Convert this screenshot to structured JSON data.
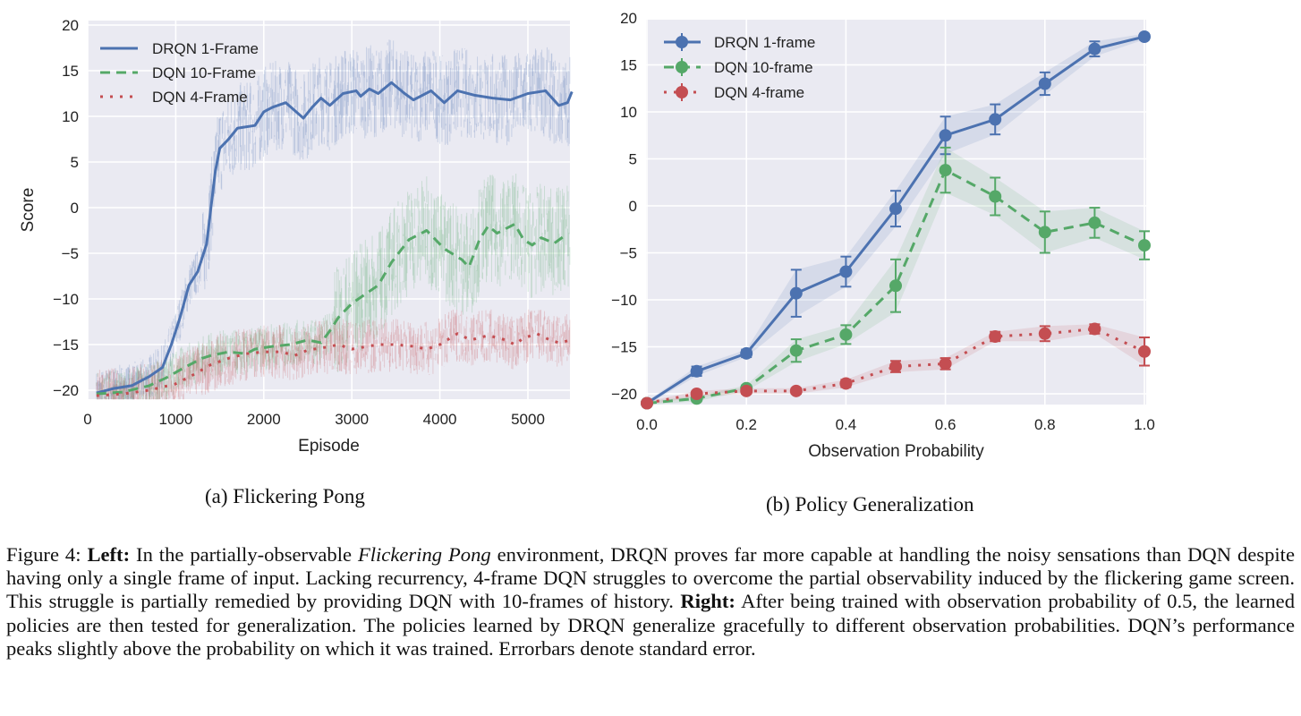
{
  "chart_data": [
    {
      "type": "line",
      "subcaption": "(a) Flickering Pong",
      "xlabel": "Episode",
      "ylabel": "Score",
      "xlim": [
        0,
        5500
      ],
      "ylim": [
        -21,
        20.5
      ],
      "xticks": [
        "0",
        "1000",
        "2000",
        "3000",
        "4000",
        "5000"
      ],
      "yticks": [
        "−20",
        "−15",
        "−10",
        "−5",
        "0",
        "5",
        "10",
        "15",
        "20"
      ],
      "grid": true,
      "legend_position": "top-left",
      "background": "#eaeaf2",
      "series": [
        {
          "name": "DRQN 1-Frame",
          "color": "#4c72b0",
          "style": "solid",
          "x": [
            100,
            300,
            500,
            700,
            850,
            950,
            1050,
            1150,
            1250,
            1350,
            1400,
            1450,
            1500,
            1600,
            1700,
            1900,
            2000,
            2100,
            2250,
            2450,
            2550,
            2650,
            2750,
            2900,
            3050,
            3100,
            3200,
            3300,
            3450,
            3600,
            3700,
            3900,
            4050,
            4200,
            4400,
            4600,
            4800,
            5000,
            5200,
            5350,
            5450,
            5500
          ],
          "y": [
            -20.3,
            -19.8,
            -19.5,
            -18.5,
            -17.5,
            -15,
            -12,
            -8.5,
            -7,
            -4,
            0,
            4,
            6.5,
            7.5,
            8.7,
            9,
            10.5,
            11,
            11.5,
            9.8,
            11,
            12,
            11.2,
            12.5,
            12.8,
            12.2,
            13,
            12.5,
            13.7,
            12.5,
            11.8,
            12.8,
            11.5,
            12.8,
            12.3,
            12,
            11.8,
            12.5,
            12.8,
            11.2,
            11.5,
            12.7
          ]
        },
        {
          "name": "DQN 10-Frame",
          "color": "#55a868",
          "style": "dashed",
          "x": [
            100,
            400,
            700,
            900,
            1100,
            1300,
            1400,
            1600,
            1800,
            1900,
            2100,
            2300,
            2500,
            2650,
            2750,
            2850,
            3000,
            3150,
            3300,
            3450,
            3650,
            3850,
            4050,
            4250,
            4330,
            4450,
            4550,
            4650,
            4750,
            4850,
            4950,
            5050,
            5150,
            5300,
            5400
          ],
          "y": [
            -20.4,
            -20.2,
            -19.5,
            -18.6,
            -17.5,
            -16.5,
            -16.2,
            -15.8,
            -16,
            -15.5,
            -15.2,
            -15,
            -14.5,
            -14.8,
            -13.5,
            -12,
            -10.5,
            -9.5,
            -8.5,
            -6,
            -3.5,
            -2.5,
            -4.5,
            -5.7,
            -6.5,
            -3.5,
            -2,
            -2.8,
            -2.3,
            -1.8,
            -3.5,
            -4.1,
            -3.3,
            -3.9,
            -3.2
          ]
        },
        {
          "name": "DQN 4-Frame",
          "color": "#c44e52",
          "style": "dotted",
          "x": [
            100,
            400,
            700,
            1000,
            1200,
            1400,
            1600,
            1800,
            2000,
            2200,
            2350,
            2500,
            2700,
            2850,
            3000,
            3300,
            3500,
            3700,
            3850,
            4000,
            4200,
            4350,
            4550,
            4750,
            4850,
            4950,
            5100,
            5250,
            5350,
            5450
          ],
          "y": [
            -20.6,
            -20.4,
            -20,
            -19.3,
            -18.3,
            -17.2,
            -16.5,
            -16,
            -15.8,
            -15.8,
            -16.2,
            -15.6,
            -15.3,
            -15,
            -15.5,
            -15,
            -15,
            -15.2,
            -15.5,
            -15,
            -13.8,
            -14.5,
            -14,
            -14.5,
            -15,
            -14.3,
            -13.8,
            -14.5,
            -14.8,
            -14.6
          ]
        }
      ]
    },
    {
      "type": "line",
      "subcaption": "(b) Policy Generalization",
      "xlabel": "Observation Probability",
      "ylabel": "",
      "xlim": [
        0,
        1
      ],
      "ylim": [
        -21,
        20.3
      ],
      "xticks": [
        "0.0",
        "0.2",
        "0.4",
        "0.6",
        "0.8",
        "1.0"
      ],
      "yticks": [
        "−20",
        "−15",
        "−10",
        "−5",
        "0",
        "5",
        "10",
        "15",
        "20"
      ],
      "grid": true,
      "legend_position": "top-left",
      "background": "#eaeaf2",
      "x": [
        0.0,
        0.1,
        0.2,
        0.3,
        0.4,
        0.5,
        0.6,
        0.7,
        0.8,
        0.9,
        1.0
      ],
      "series": [
        {
          "name": "DRQN 1-frame",
          "color": "#4c72b0",
          "style": "solid",
          "y": [
            -21,
            -17.6,
            -15.7,
            -9.3,
            -7.0,
            -0.3,
            7.5,
            9.2,
            13.0,
            16.7,
            18.0
          ],
          "stderr": [
            0.2,
            0.5,
            0.4,
            2.5,
            1.6,
            1.9,
            2.0,
            1.6,
            1.2,
            0.8,
            0.3
          ]
        },
        {
          "name": "DQN 10-frame",
          "color": "#55a868",
          "style": "dashed",
          "y": [
            -21,
            -20.5,
            -19.4,
            -15.4,
            -13.7,
            -8.5,
            3.8,
            1.0,
            -2.8,
            -1.8,
            -4.2
          ],
          "stderr": [
            0.2,
            0.3,
            0.3,
            1.2,
            1.0,
            2.8,
            2.4,
            2.0,
            2.2,
            1.6,
            1.5
          ]
        },
        {
          "name": "DQN 4-frame",
          "color": "#c44e52",
          "style": "dotted",
          "y": [
            -21,
            -20.0,
            -19.7,
            -19.7,
            -18.9,
            -17.1,
            -16.8,
            -13.9,
            -13.6,
            -13.1,
            -15.5
          ],
          "stderr": [
            0.2,
            0.3,
            0.3,
            0.3,
            0.4,
            0.6,
            0.6,
            0.5,
            0.8,
            0.5,
            1.5
          ]
        }
      ]
    }
  ],
  "caption": {
    "segments": [
      {
        "text": "Figure 4: ",
        "style": "normal"
      },
      {
        "text": "Left:",
        "style": "bold"
      },
      {
        "text": " In the partially-observable ",
        "style": "normal"
      },
      {
        "text": "Flickering Pong",
        "style": "italic"
      },
      {
        "text": " environment, DRQN proves far more capable at handling the noisy sensations than DQN despite having only a single frame of input. Lacking recurrency, 4-frame DQN struggles to overcome the partial observability induced by the flickering game screen. This struggle is partially remedied by providing DQN with 10-frames of history. ",
        "style": "normal"
      },
      {
        "text": "Right:",
        "style": "bold"
      },
      {
        "text": " After being trained with observation probability of 0.5, the learned policies are then tested for generalization. The policies learned by DRQN generalize gracefully to different observation probabilities. DQN’s performance peaks slightly above the probability on which it was trained. Errorbars denote standard error.",
        "style": "normal"
      }
    ]
  }
}
